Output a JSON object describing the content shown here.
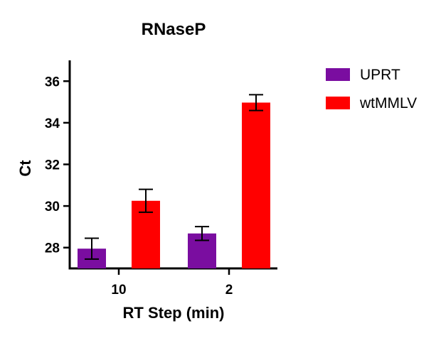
{
  "chart_data": {
    "type": "bar",
    "title": "RNaseP",
    "xlabel": "RT Step (min)",
    "ylabel": "Ct",
    "categories": [
      "10",
      "2"
    ],
    "ylim": [
      27,
      37
    ],
    "yticks": [
      28,
      30,
      32,
      34,
      36
    ],
    "legend_position": "top-right",
    "grid": false,
    "series": [
      {
        "name": "UPRT",
        "color": "#7a0da0",
        "values": [
          27.95,
          28.68
        ],
        "errors": [
          0.5,
          0.33
        ]
      },
      {
        "name": "wtMMLV",
        "color": "#ff0000",
        "values": [
          30.25,
          34.97
        ],
        "errors": [
          0.55,
          0.38
        ]
      }
    ]
  }
}
